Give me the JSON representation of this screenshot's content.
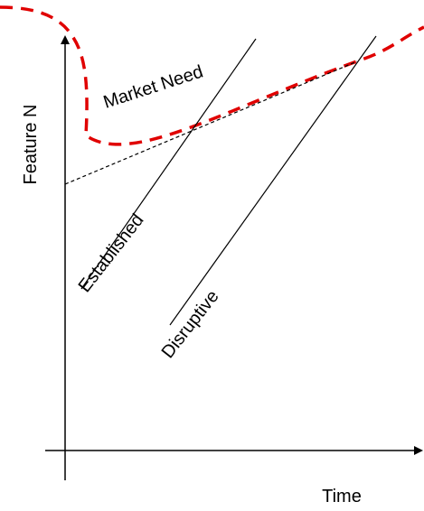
{
  "labels": {
    "y_axis": "Feature N",
    "x_axis": "Time",
    "market_need": "Market Need",
    "established": "Established",
    "disruptive": "Disruptive"
  },
  "colors": {
    "market_need_curve": "#e00000",
    "lines": "#000000",
    "background": "#ffffff"
  }
}
